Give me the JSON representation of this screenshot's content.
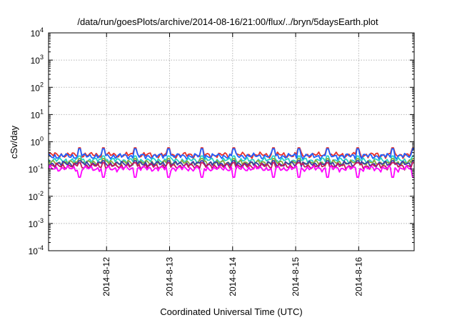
{
  "chart_data": {
    "type": "line",
    "title": "/data/run/goesPlots/archive/2014-08-16/21:00/flux/../bryn/5daysEarth.plot",
    "xlabel": "Coordinated Universal Time (UTC)",
    "ylabel": "cSv/day",
    "y_scale": "log",
    "ylim_exponents": [
      -4,
      4
    ],
    "y_tick_labels": [
      {
        "base": "10",
        "exp": "4"
      },
      {
        "base": "10",
        "exp": "3"
      },
      {
        "base": "10",
        "exp": "2"
      },
      {
        "base": "10",
        "exp": "1"
      },
      {
        "base": "10",
        "exp": "0"
      },
      {
        "base": "10",
        "exp": "-1"
      },
      {
        "base": "10",
        "exp": "-2"
      },
      {
        "base": "10",
        "exp": "-3"
      },
      {
        "base": "10",
        "exp": "-4"
      }
    ],
    "xlim_days": [
      11.08,
      16.88
    ],
    "x_ticks": [
      {
        "day": 12,
        "label": "2014-8-12"
      },
      {
        "day": 13,
        "label": "2014-8-13"
      },
      {
        "day": 14,
        "label": "2014-8-14"
      },
      {
        "day": 15,
        "label": "2014-8-15"
      },
      {
        "day": 16,
        "label": "2014-8-16"
      }
    ],
    "grid": true,
    "series": [
      {
        "color": "#e8302a",
        "approx_value": 0.33,
        "spike_value": 0.6
      },
      {
        "color": "#2060ff",
        "approx_value": 0.3,
        "spike_value": 0.55
      },
      {
        "color": "#26d0c8",
        "approx_value": 0.21,
        "spike_value": 0.3
      },
      {
        "color": "#8aa83a",
        "approx_value": 0.17,
        "spike_value": 0.24
      },
      {
        "color": "#3a3aa8",
        "approx_value": 0.155,
        "spike_value": 0.2
      },
      {
        "color": "#c2185b",
        "approx_value": 0.13,
        "spike_value": 0.17
      },
      {
        "color": "#ff00ff",
        "approx_value": 0.105,
        "spike_value": 0.05
      }
    ]
  }
}
